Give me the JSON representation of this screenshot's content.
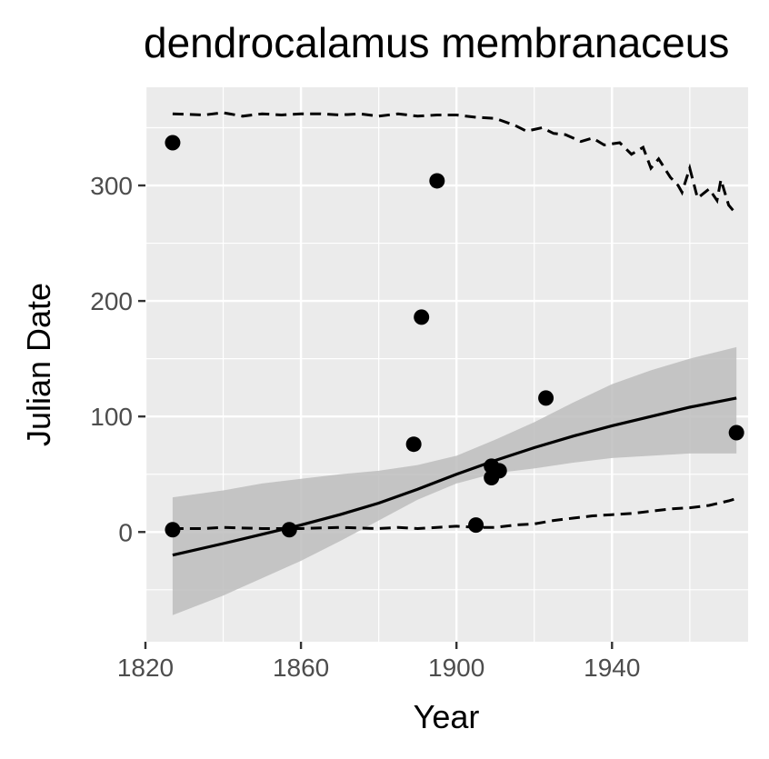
{
  "chart_data": {
    "type": "scatter",
    "title": "dendrocalamus membranaceus",
    "xlabel": "Year",
    "ylabel": "Julian Date",
    "xlim": [
      1820,
      1975
    ],
    "ylim": [
      -95,
      385
    ],
    "x_ticks": [
      1820,
      1860,
      1900,
      1940
    ],
    "y_ticks": [
      0,
      100,
      200,
      300
    ],
    "grid": true,
    "legend": "none",
    "points": [
      {
        "x": 1827,
        "y": 337
      },
      {
        "x": 1827,
        "y": 2
      },
      {
        "x": 1857,
        "y": 2
      },
      {
        "x": 1889,
        "y": 76
      },
      {
        "x": 1891,
        "y": 186
      },
      {
        "x": 1895,
        "y": 304
      },
      {
        "x": 1905,
        "y": 6
      },
      {
        "x": 1909,
        "y": 47
      },
      {
        "x": 1909,
        "y": 57
      },
      {
        "x": 1911,
        "y": 53
      },
      {
        "x": 1923,
        "y": 116
      },
      {
        "x": 1972,
        "y": 86
      }
    ],
    "fit_line": {
      "x": [
        1827,
        1840,
        1850,
        1860,
        1870,
        1880,
        1890,
        1900,
        1910,
        1920,
        1930,
        1940,
        1950,
        1960,
        1972
      ],
      "y": [
        -20,
        -10,
        -2,
        6,
        15,
        25,
        37,
        50,
        62,
        73,
        83,
        92,
        100,
        108,
        116
      ]
    },
    "confidence_band": {
      "x": [
        1827,
        1840,
        1850,
        1860,
        1870,
        1880,
        1890,
        1900,
        1910,
        1920,
        1930,
        1940,
        1950,
        1960,
        1972
      ],
      "lower": [
        -72,
        -55,
        -40,
        -25,
        -8,
        10,
        28,
        42,
        51,
        55,
        60,
        64,
        66,
        68,
        68
      ],
      "upper": [
        30,
        36,
        42,
        46,
        50,
        53,
        58,
        66,
        80,
        95,
        112,
        128,
        140,
        150,
        160
      ]
    },
    "upper_quantile": {
      "x": [
        1827,
        1835,
        1840,
        1845,
        1850,
        1855,
        1860,
        1865,
        1870,
        1875,
        1880,
        1885,
        1890,
        1895,
        1900,
        1905,
        1910,
        1915,
        1918,
        1922,
        1925,
        1928,
        1932,
        1935,
        1938,
        1942,
        1945,
        1948,
        1950,
        1952,
        1955,
        1957,
        1958,
        1960,
        1962,
        1965,
        1967,
        1968,
        1970,
        1972
      ],
      "y": [
        362,
        361,
        363,
        360,
        362,
        361,
        362,
        362,
        361,
        362,
        360,
        362,
        360,
        361,
        361,
        359,
        358,
        352,
        347,
        350,
        345,
        344,
        338,
        341,
        335,
        337,
        327,
        333,
        315,
        323,
        307,
        300,
        294,
        315,
        289,
        297,
        287,
        305,
        283,
        275
      ]
    },
    "lower_quantile": {
      "x": [
        1827,
        1835,
        1840,
        1850,
        1860,
        1870,
        1880,
        1885,
        1890,
        1895,
        1900,
        1905,
        1910,
        1915,
        1920,
        1925,
        1930,
        1935,
        1940,
        1945,
        1950,
        1955,
        1960,
        1965,
        1970,
        1972
      ],
      "y": [
        3,
        3,
        4,
        3,
        3,
        4,
        3,
        4,
        3,
        4,
        5,
        4,
        4,
        6,
        7,
        10,
        12,
        14,
        15,
        16,
        18,
        20,
        21,
        23,
        27,
        29
      ]
    },
    "colors": {
      "panel": "#ebebeb",
      "grid": "#ffffff",
      "points": "#000000",
      "band": "#bdbdbd",
      "line": "#000000"
    }
  }
}
